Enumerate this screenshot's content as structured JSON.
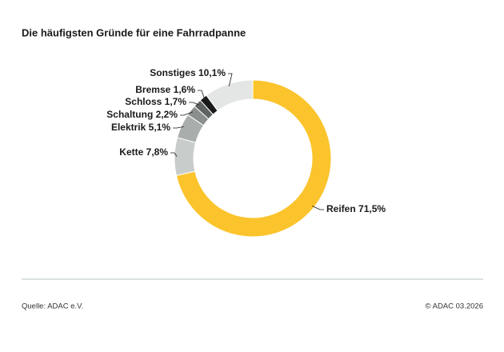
{
  "chart_data": {
    "type": "donut",
    "title": "Die häufigsten Gründe für eine Fahrradpanne",
    "categories": [
      "Reifen",
      "Kette",
      "Elektrik",
      "Schaltung",
      "Schloss",
      "Bremse",
      "Sonstiges"
    ],
    "values": [
      71.5,
      7.8,
      5.1,
      2.2,
      1.7,
      1.6,
      10.1
    ],
    "value_labels": [
      "71,5%",
      "7,8%",
      "5,1%",
      "2,2%",
      "1,7%",
      "1,6%",
      "10,1%"
    ],
    "colors": [
      "#fbc42c",
      "#c8ccca",
      "#a9adab",
      "#8a8f8d",
      "#5e6462",
      "#1a1a1a",
      "#e3e6e4"
    ],
    "source": "Quelle: ADAC e.V.",
    "credit": "© ADAC  03.2026"
  }
}
